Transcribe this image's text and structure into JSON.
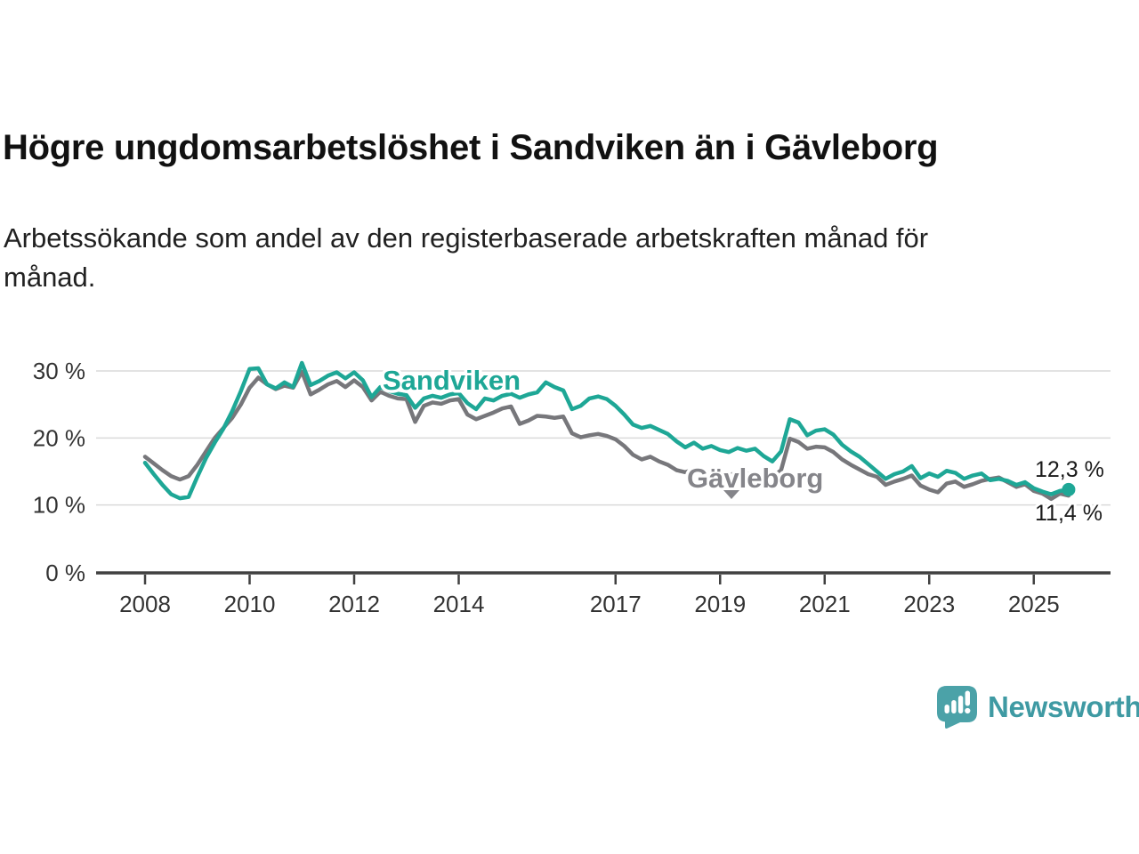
{
  "header": {
    "title": "Högre ungdomsarbetslöshet i Sandviken än i Gävleborg",
    "subtitle_line1": "Arbetssökande som andel av den registerbaserade arbetskraften månad för",
    "subtitle_line2": "månad."
  },
  "chart_data": {
    "type": "line",
    "title": "Högre ungdomsarbetslöshet i Sandviken än i Gävleborg",
    "subtitle": "Arbetssökande som andel av den registerbaserade arbetskraften månad för månad.",
    "unit": "%",
    "x_start": "2008-01",
    "x_step_months": 2,
    "x_end": "2025-09",
    "ylim": [
      0,
      33
    ],
    "yticks": [
      0,
      10,
      20,
      30
    ],
    "ytick_format": "{v} %",
    "xticks": [
      2008,
      2010,
      2012,
      2014,
      2017,
      2019,
      2021,
      2023,
      2025
    ],
    "grid": "horizontal",
    "legend_position": "inline-labels",
    "axis_color": "#404040",
    "gridline_color": "#dadada",
    "series": [
      {
        "name": "Sandviken",
        "color": "#1ea796",
        "label_color": "#1ea796",
        "end_value": 12.3,
        "end_label": "12,3 %",
        "values": [
          16.3,
          14.6,
          13.0,
          11.6,
          11.0,
          11.2,
          14.2,
          17.0,
          19.3,
          21.4,
          24.0,
          27.0,
          30.3,
          30.4,
          28.0,
          27.4,
          28.3,
          27.6,
          31.2,
          27.9,
          28.5,
          29.3,
          29.8,
          28.9,
          29.8,
          28.6,
          26.1,
          27.6,
          27.0,
          26.6,
          26.4,
          24.5,
          25.9,
          26.3,
          26.0,
          26.5,
          26.7,
          25.2,
          24.3,
          25.9,
          25.6,
          26.3,
          26.6,
          26.0,
          26.5,
          26.8,
          28.3,
          27.6,
          27.1,
          24.3,
          24.8,
          25.9,
          26.2,
          25.8,
          24.8,
          23.5,
          22.0,
          21.5,
          21.8,
          21.2,
          20.6,
          19.5,
          18.6,
          19.3,
          18.4,
          18.8,
          18.2,
          17.9,
          18.5,
          18.1,
          18.4,
          17.3,
          16.5,
          18.0,
          22.8,
          22.3,
          20.4,
          21.1,
          21.3,
          20.5,
          19.0,
          18.0,
          17.2,
          16.1,
          15.0,
          13.9,
          14.6,
          15.0,
          15.8,
          14.0,
          14.7,
          14.2,
          15.1,
          14.8,
          13.9,
          14.4,
          14.7,
          13.7,
          13.9,
          13.6,
          13.0,
          13.4,
          12.5,
          12.0,
          11.6,
          12.1,
          12.3
        ]
      },
      {
        "name": "Gävleborg",
        "color": "#77777b",
        "label_color": "#85858a",
        "end_value": 11.4,
        "end_label": "11,4 %",
        "values": [
          17.2,
          16.2,
          15.2,
          14.3,
          13.8,
          14.3,
          16.0,
          18.0,
          20.0,
          21.5,
          23.0,
          25.0,
          27.5,
          29.0,
          28.0,
          27.3,
          27.8,
          27.5,
          29.9,
          26.5,
          27.2,
          28.0,
          28.5,
          27.6,
          28.6,
          27.6,
          25.6,
          26.9,
          26.3,
          25.9,
          25.8,
          22.4,
          24.8,
          25.3,
          25.1,
          25.6,
          25.8,
          23.5,
          22.8,
          23.3,
          23.8,
          24.4,
          24.7,
          22.1,
          22.6,
          23.3,
          23.2,
          23.0,
          23.2,
          20.7,
          20.1,
          20.4,
          20.6,
          20.3,
          19.8,
          18.8,
          17.5,
          16.8,
          17.2,
          16.5,
          16.0,
          15.2,
          14.9,
          15.3,
          14.6,
          14.9,
          14.7,
          14.4,
          14.9,
          14.6,
          14.8,
          14.3,
          14.1,
          15.2,
          19.9,
          19.4,
          18.4,
          18.7,
          18.6,
          17.9,
          16.8,
          16.0,
          15.3,
          14.6,
          14.2,
          13.0,
          13.5,
          13.9,
          14.4,
          12.9,
          12.3,
          11.9,
          13.2,
          13.5,
          12.7,
          13.1,
          13.6,
          13.9,
          14.1,
          13.4,
          12.7,
          13.1,
          12.1,
          11.7,
          10.9,
          11.7,
          11.4
        ]
      }
    ]
  },
  "footer": {
    "brand": "Newsworthy",
    "brand_color": "#3f9aa3",
    "logo_icon": "newsworthy-speech-bubble-chart-icon",
    "logo_bubble_color": "#4ba2a8"
  }
}
